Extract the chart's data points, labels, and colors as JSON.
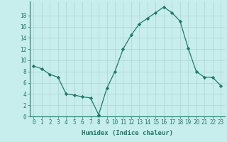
{
  "x": [
    0,
    1,
    2,
    3,
    4,
    5,
    6,
    7,
    8,
    9,
    10,
    11,
    12,
    13,
    14,
    15,
    16,
    17,
    18,
    19,
    20,
    21,
    22,
    23
  ],
  "y": [
    9,
    8.5,
    7.5,
    7,
    4,
    3.8,
    3.5,
    3.3,
    0.3,
    5,
    8,
    12,
    14.5,
    16.5,
    17.5,
    18.5,
    19.5,
    18.5,
    17,
    12.2,
    8,
    7,
    7,
    5.5
  ],
  "line_color": "#1e7a65",
  "marker": "D",
  "marker_size": 2.2,
  "bg_color": "#c8eded",
  "grid_color": "#b0d8d8",
  "xlabel": "Humidex (Indice chaleur)",
  "ylim": [
    0,
    20
  ],
  "xlim": [
    -0.5,
    23.5
  ],
  "yticks": [
    0,
    2,
    4,
    6,
    8,
    10,
    12,
    14,
    16,
    18
  ],
  "xticks": [
    0,
    1,
    2,
    3,
    4,
    5,
    6,
    7,
    8,
    9,
    10,
    11,
    12,
    13,
    14,
    15,
    16,
    17,
    18,
    19,
    20,
    21,
    22,
    23
  ],
  "tick_label_fontsize": 5.5,
  "xlabel_fontsize": 6.5,
  "linewidth": 0.9
}
